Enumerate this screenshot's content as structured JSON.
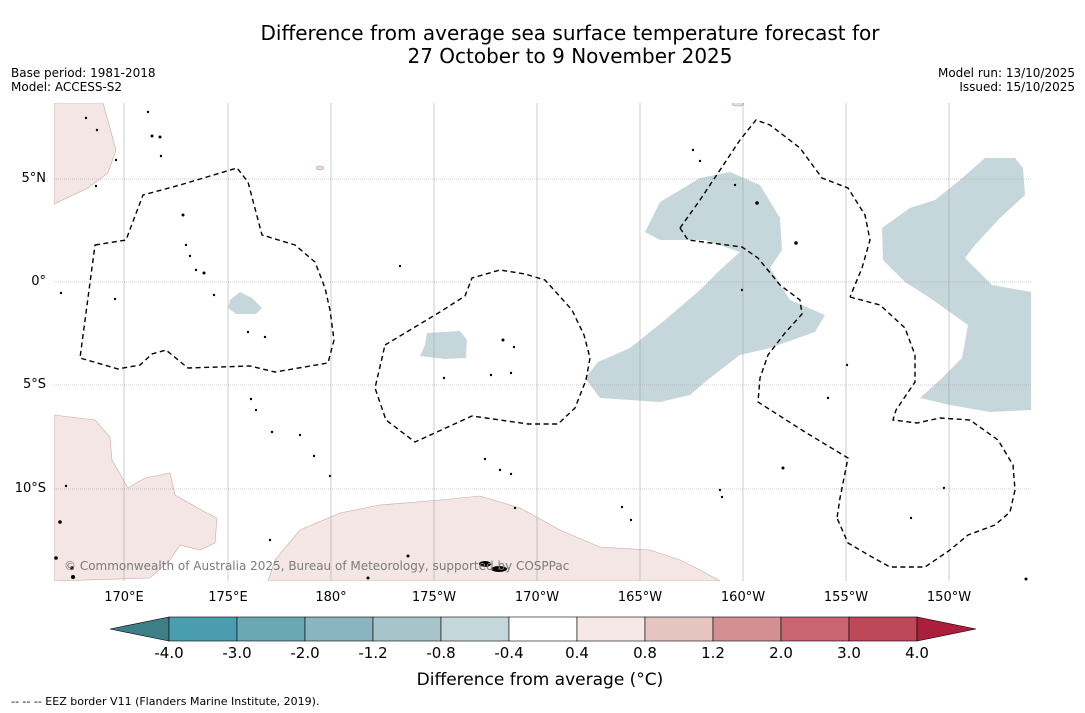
{
  "title": {
    "line1": "Difference from average sea surface temperature forecast for",
    "line2": "27 October to 9 November 2025"
  },
  "meta_left": {
    "base_period": "Base period: 1981-2018",
    "model": "Model: ACCESS-S2"
  },
  "meta_right": {
    "model_run": "Model run: 13/10/2025",
    "issued": "Issued: 15/10/2025"
  },
  "map": {
    "lon_labels": [
      "170°E",
      "175°E",
      "180°",
      "175°W",
      "170°W",
      "165°W",
      "160°W",
      "155°W",
      "150°W"
    ],
    "lat_labels": [
      "5°N",
      "0°",
      "5°S",
      "10°S"
    ],
    "copyright": "© Commonwealth of Australia 2025, Bureau of Meteorology, supported by COSPPac",
    "colors": {
      "land": "#f3e6e4",
      "land_edge": "#caa9a4",
      "cool_anomaly": "#c6d7dc",
      "eez_line": "#000000",
      "grid": "#999999"
    }
  },
  "colorbar": {
    "title": "Difference from average (°C)",
    "tick_labels": [
      "-4.0",
      "-3.0",
      "-2.0",
      "-1.2",
      "-0.8",
      "-0.4",
      "0.4",
      "0.8",
      "1.2",
      "2.0",
      "3.0",
      "4.0"
    ],
    "colors": [
      "#4a9daf",
      "#6aa8b6",
      "#8ab4bf",
      "#a7c4ca",
      "#c6d7dc",
      "#ffffff",
      "#f5e8e6",
      "#e6c4bf",
      "#d38f93",
      "#c86570",
      "#bd4858"
    ],
    "extend_low_color": "#3d7f87",
    "extend_high_color": "#ab1f3c"
  },
  "eez_legend": "-- -- -- EEZ border V11 (Flanders Marine Institute, 2019)."
}
